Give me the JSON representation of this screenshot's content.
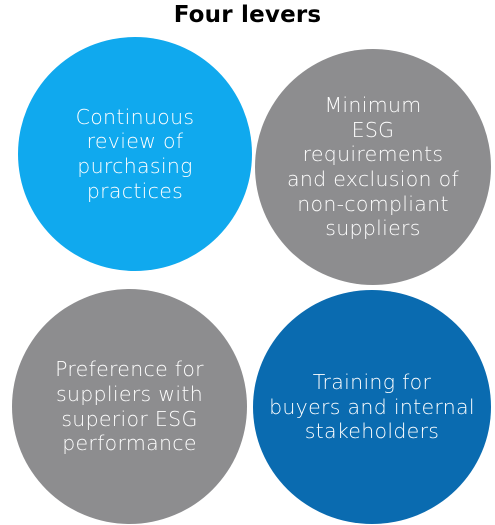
{
  "title": "Four levers",
  "colors": {
    "light_blue": "#10A9EE",
    "gray": "#8D8D8F",
    "dark_blue": "#0A6BB0",
    "text": "#FFFFFF"
  },
  "levers": [
    {
      "text": "Continuous\nreview of\npurchasing\npractices",
      "color": "#10A9EE"
    },
    {
      "text": "Minimum\nESG\nrequirements\nand exclusion of\nnon-compliant\nsuppliers",
      "color": "#8D8D8F"
    },
    {
      "text": "Preference for\nsuppliers with\nsuperior ESG\nperformance",
      "color": "#8D8D8F"
    },
    {
      "text": "Training for\nbuyers and internal\nstakeholders",
      "color": "#0A6BB0"
    }
  ]
}
